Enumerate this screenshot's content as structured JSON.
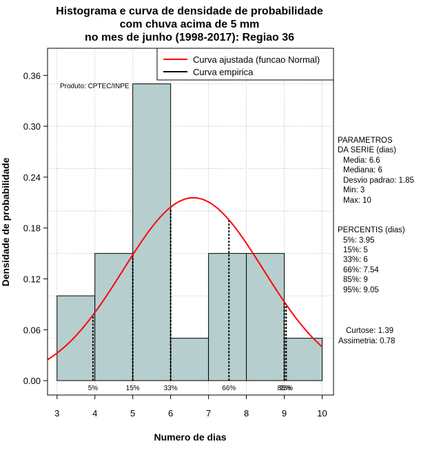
{
  "chart_data": {
    "type": "bar",
    "title_lines": [
      "Histograma e curva de densidade de probabilidade",
      "com chuva acima de 5 mm",
      "no mes de junho (1998-2017): Regiao 36"
    ],
    "xlabel": "Numero de dias",
    "ylabel": "Densidade de probabilidade",
    "xlim": [
      2.75,
      10.3
    ],
    "ylim": [
      -0.017,
      0.392
    ],
    "x_ticks": [
      3,
      4,
      5,
      6,
      7,
      8,
      9,
      10
    ],
    "y_ticks": [
      0.0,
      0.06,
      0.12,
      0.18,
      0.24,
      0.3,
      0.36
    ],
    "y_tick_labels": [
      "0.00",
      "0.06",
      "0.12",
      "0.18",
      "0.24",
      "0.30",
      "0.36"
    ],
    "h_grid": [
      0.05,
      0.1,
      0.15,
      0.2,
      0.25,
      0.3,
      0.35
    ],
    "v_grid": [
      3,
      4,
      5,
      6,
      7,
      8,
      9,
      10
    ],
    "bins": [
      {
        "x0": 3,
        "x1": 4,
        "density": 0.1
      },
      {
        "x0": 4,
        "x1": 5,
        "density": 0.15
      },
      {
        "x0": 5,
        "x1": 6,
        "density": 0.35
      },
      {
        "x0": 6,
        "x1": 7,
        "density": 0.05
      },
      {
        "x0": 7,
        "x1": 8,
        "density": 0.15
      },
      {
        "x0": 8,
        "x1": 9,
        "density": 0.15
      },
      {
        "x0": 9,
        "x1": 10,
        "density": 0.05
      }
    ],
    "normal_fit": {
      "mean": 6.6,
      "sd": 1.85
    },
    "percentile_markers": [
      {
        "x": 3.95,
        "label": "5%"
      },
      {
        "x": 5,
        "label": "15%"
      },
      {
        "x": 6,
        "label": "33%"
      },
      {
        "x": 7.54,
        "label": "66%"
      },
      {
        "x": 9,
        "label": "85%"
      },
      {
        "x": 9.05,
        "label": "95%"
      }
    ],
    "legend": [
      {
        "label": "Curva ajustada (funcao Normal)",
        "color": "#ff0000"
      },
      {
        "label": "Curva empirica",
        "color": "#000000"
      }
    ],
    "product_label": "Produto: CPTEC/INPE",
    "colors": {
      "bar_fill": "#b6cece",
      "fit_curve": "#ff0000",
      "grid": "#b4b4b4"
    }
  },
  "side_panel": {
    "params_title": [
      "PARAMETROS",
      "DA SERIE (dias)"
    ],
    "params": [
      "Media: 6.6",
      "Mediana: 6",
      "Desvio padrao: 1.85",
      "Min: 3",
      "Max: 10"
    ],
    "percentis_title": "PERCENTIS (dias)",
    "percentis": [
      "5%: 3.95",
      "15%: 5",
      "33%: 6",
      "66%: 7.54",
      "85%: 9",
      "95%: 9.05"
    ],
    "curtose": "Curtose: 1.39",
    "assimetria": "Assimetria: 0.78"
  }
}
